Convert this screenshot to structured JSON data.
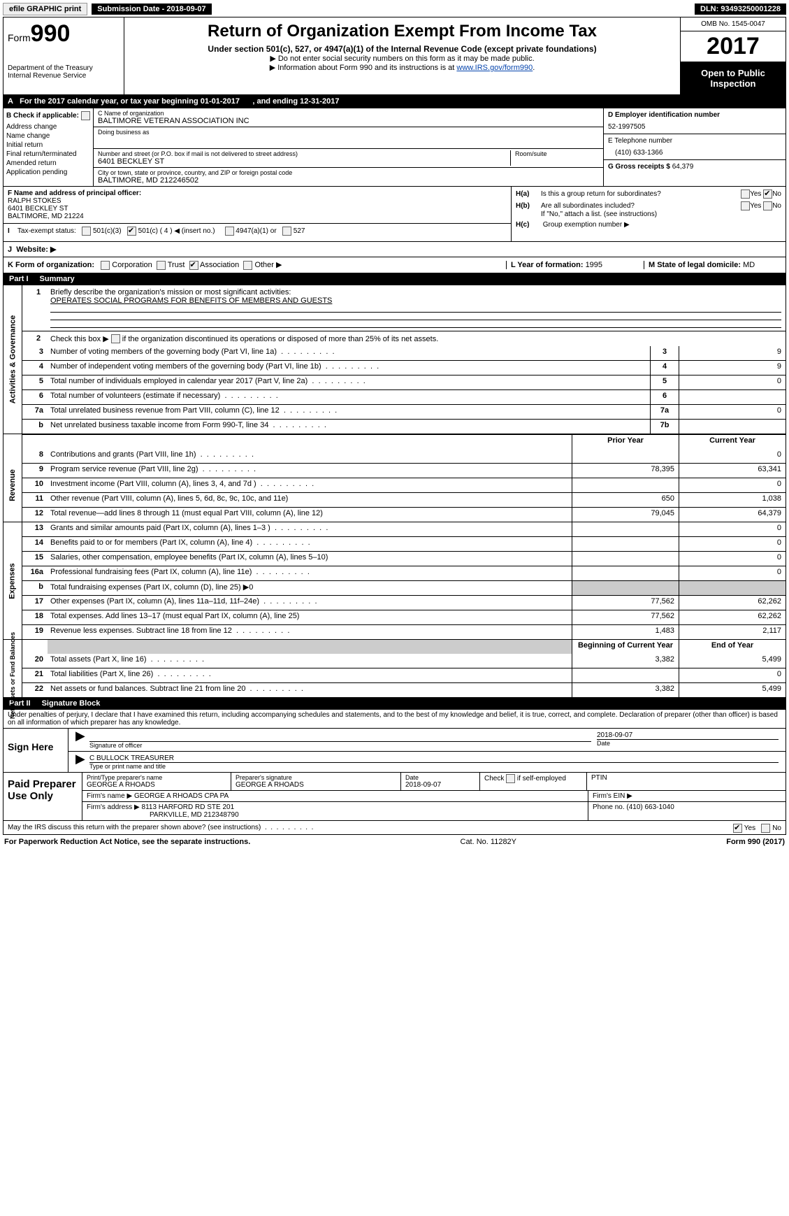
{
  "topbar": {
    "efile": "efile GRAPHIC print",
    "subdate_lbl": "Submission Date - ",
    "subdate": "2018-09-07",
    "dln_lbl": "DLN: ",
    "dln": "93493250001228"
  },
  "header": {
    "form_prefix": "Form",
    "form_num": "990",
    "dept1": "Department of the Treasury",
    "dept2": "Internal Revenue Service",
    "title": "Return of Organization Exempt From Income Tax",
    "sub1": "Under section 501(c), 527, or 4947(a)(1) of the Internal Revenue Code (except private foundations)",
    "sub2a": "▶ Do not enter social security numbers on this form as it may be made public.",
    "sub2b": "▶ Information about Form 990 and its instructions is at ",
    "sub2b_link": "www.IRS.gov/form990",
    "omb": "OMB No. 1545-0047",
    "year": "2017",
    "open": "Open to Public Inspection"
  },
  "rowA": {
    "text_a": "A",
    "text": "For the 2017 calendar year, or tax year beginning 01-01-2017",
    "text2": ", and ending 12-31-2017"
  },
  "colB": {
    "hdr": "B Check if applicable:",
    "addr": "Address change",
    "name": "Name change",
    "init": "Initial return",
    "final": "Final return/terminated",
    "amend": "Amended return",
    "app": "Application pending"
  },
  "colC": {
    "name_lbl": "C Name of organization",
    "name": "BALTIMORE VETERAN ASSOCIATION INC",
    "dba_lbl": "Doing business as",
    "dba": "",
    "street_lbl": "Number and street (or P.O. box if mail is not delivered to street address)",
    "street": "6401 BECKLEY ST",
    "room_lbl": "Room/suite",
    "room": "",
    "city_lbl": "City or town, state or province, country, and ZIP or foreign postal code",
    "city": "BALTIMORE, MD  212246502"
  },
  "colD": {
    "ein_lbl": "D Employer identification number",
    "ein": "52-1997505",
    "tel_lbl": "E Telephone number",
    "tel": "(410) 633-1366",
    "gross_lbl": "G Gross receipts $ ",
    "gross": "64,379"
  },
  "rowF": {
    "lbl": "F Name and address of principal officer:",
    "name": "RALPH STOKES",
    "street": "6401 BECKLEY ST",
    "city": "BALTIMORE, MD  21224"
  },
  "rowH": {
    "ha_lbl": "H(a)",
    "ha": "Is this a group return for subordinates?",
    "hb_lbl": "H(b)",
    "hb": "Are all subordinates included?",
    "hb2": "If \"No,\" attach a list. (see instructions)",
    "hc_lbl": "H(c)",
    "hc": "Group exemption number ▶",
    "yes": "Yes",
    "no": "No"
  },
  "rowI": {
    "lbl": "I",
    "text": "Tax-exempt status:",
    "o1": "501(c)(3)",
    "o2": "501(c) ( 4 ) ◀ (insert no.)",
    "o3": "4947(a)(1) or",
    "o4": "527"
  },
  "rowJ": {
    "lbl": "J",
    "text": "Website: ▶"
  },
  "rowK": {
    "lbl": "K Form of organization:",
    "o1": "Corporation",
    "o2": "Trust",
    "o3": "Association",
    "o4": "Other ▶",
    "l_lbl": "L Year of formation: ",
    "l": "1995",
    "m_lbl": "M State of legal domicile: ",
    "m": "MD"
  },
  "part1": {
    "pn": "Part I",
    "title": "Summary"
  },
  "sum": {
    "q1_n": "1",
    "q1": "Briefly describe the organization's mission or most significant activities:",
    "q1_val": "OPERATES SOCIAL PROGRAMS FOR BENEFITS OF MEMBERS AND GUESTS",
    "q2_n": "2",
    "q2": "Check this box ▶       if the organization discontinued its operations or disposed of more than 25% of its net assets.",
    "sec1_label": "Activities & Governance",
    "rows1": [
      {
        "n": "3",
        "d": "Number of voting members of the governing body (Part VI, line 1a)",
        "cn": "3",
        "cv": "9",
        "dots": true
      },
      {
        "n": "4",
        "d": "Number of independent voting members of the governing body (Part VI, line 1b)",
        "cn": "4",
        "cv": "9",
        "dots": true
      },
      {
        "n": "5",
        "d": "Total number of individuals employed in calendar year 2017 (Part V, line 2a)",
        "cn": "5",
        "cv": "0",
        "dots": true
      },
      {
        "n": "6",
        "d": "Total number of volunteers (estimate if necessary)",
        "cn": "6",
        "cv": "",
        "dots": true
      },
      {
        "n": "7a",
        "d": "Total unrelated business revenue from Part VIII, column (C), line 12",
        "cn": "7a",
        "cv": "0",
        "dots": true
      },
      {
        "n": "b",
        "d": "Net unrelated business taxable income from Form 990-T, line 34",
        "cn": "7b",
        "cv": "",
        "dots": true
      }
    ],
    "hdr_prior": "Prior Year",
    "hdr_curr": "Current Year",
    "sec2_label": "Revenue",
    "rows2": [
      {
        "n": "8",
        "d": "Contributions and grants (Part VIII, line 1h)",
        "c1": "",
        "c2": "0",
        "dots": true
      },
      {
        "n": "9",
        "d": "Program service revenue (Part VIII, line 2g)",
        "c1": "78,395",
        "c2": "63,341",
        "dots": true
      },
      {
        "n": "10",
        "d": "Investment income (Part VIII, column (A), lines 3, 4, and 7d )",
        "c1": "",
        "c2": "0",
        "dots": true
      },
      {
        "n": "11",
        "d": "Other revenue (Part VIII, column (A), lines 5, 6d, 8c, 9c, 10c, and 11e)",
        "c1": "650",
        "c2": "1,038",
        "dots": false
      },
      {
        "n": "12",
        "d": "Total revenue—add lines 8 through 11 (must equal Part VIII, column (A), line 12)",
        "c1": "79,045",
        "c2": "64,379",
        "dots": false
      }
    ],
    "sec3_label": "Expenses",
    "rows3": [
      {
        "n": "13",
        "d": "Grants and similar amounts paid (Part IX, column (A), lines 1–3 )",
        "c1": "",
        "c2": "0",
        "dots": true
      },
      {
        "n": "14",
        "d": "Benefits paid to or for members (Part IX, column (A), line 4)",
        "c1": "",
        "c2": "0",
        "dots": true
      },
      {
        "n": "15",
        "d": "Salaries, other compensation, employee benefits (Part IX, column (A), lines 5–10)",
        "c1": "",
        "c2": "0",
        "dots": false
      },
      {
        "n": "16a",
        "d": "Professional fundraising fees (Part IX, column (A), line 11e)",
        "c1": "",
        "c2": "0",
        "dots": true
      },
      {
        "n": "b",
        "d": "Total fundraising expenses (Part IX, column (D), line 25) ▶0",
        "c1": "",
        "c2": "",
        "shade": true,
        "dots": false
      },
      {
        "n": "17",
        "d": "Other expenses (Part IX, column (A), lines 11a–11d, 11f–24e)",
        "c1": "77,562",
        "c2": "62,262",
        "dots": true
      },
      {
        "n": "18",
        "d": "Total expenses. Add lines 13–17 (must equal Part IX, column (A), line 25)",
        "c1": "77,562",
        "c2": "62,262",
        "dots": false
      },
      {
        "n": "19",
        "d": "Revenue less expenses. Subtract line 18 from line 12",
        "c1": "1,483",
        "c2": "2,117",
        "dots": true
      }
    ],
    "sec4_label": "Net Assets or Fund Balances",
    "hdr_beg": "Beginning of Current Year",
    "hdr_end": "End of Year",
    "rows4": [
      {
        "n": "20",
        "d": "Total assets (Part X, line 16)",
        "c1": "3,382",
        "c2": "5,499",
        "dots": true
      },
      {
        "n": "21",
        "d": "Total liabilities (Part X, line 26)",
        "c1": "",
        "c2": "0",
        "dots": true
      },
      {
        "n": "22",
        "d": "Net assets or fund balances. Subtract line 21 from line 20",
        "c1": "3,382",
        "c2": "5,499",
        "dots": true
      }
    ]
  },
  "part2": {
    "pn": "Part II",
    "title": "Signature Block"
  },
  "sign": {
    "declare": "Under penalties of perjury, I declare that I have examined this return, including accompanying schedules and statements, and to the best of my knowledge and belief, it is true, correct, and complete. Declaration of preparer (other than officer) is based on all information of which preparer has any knowledge.",
    "here": "Sign Here",
    "sig_lbl": "Signature of officer",
    "date": "2018-09-07",
    "date_lbl": "Date",
    "name": "C BULLOCK TREASURER",
    "name_lbl": "Type or print name and title",
    "paid": "Paid Preparer Use Only",
    "prep_name_lbl": "Print/Type preparer's name",
    "prep_name": "GEORGE A RHOADS",
    "prep_sig_lbl": "Preparer's signature",
    "prep_sig": "GEORGE A RHOADS",
    "prep_date_lbl": "Date",
    "prep_date": "2018-09-07",
    "self": "Check       if self-employed",
    "ptin": "PTIN",
    "firm_name_lbl": "Firm's name    ▶ ",
    "firm_name": "GEORGE A RHOADS CPA PA",
    "firm_ein": "Firm's EIN ▶",
    "firm_addr_lbl": "Firm's address ▶ ",
    "firm_addr": "8113 HARFORD RD STE 201",
    "firm_city": "PARKVILLE, MD  212348790",
    "firm_phone_lbl": "Phone no. ",
    "firm_phone": "(410) 663-1040",
    "discuss": "May the IRS discuss this return with the preparer shown above? (see instructions)",
    "yes": "Yes",
    "no": "No"
  },
  "footer": {
    "left": "For Paperwork Reduction Act Notice, see the separate instructions.",
    "mid": "Cat. No. 11282Y",
    "right1": "Form ",
    "right2": "990",
    "right3": " (2017)"
  }
}
